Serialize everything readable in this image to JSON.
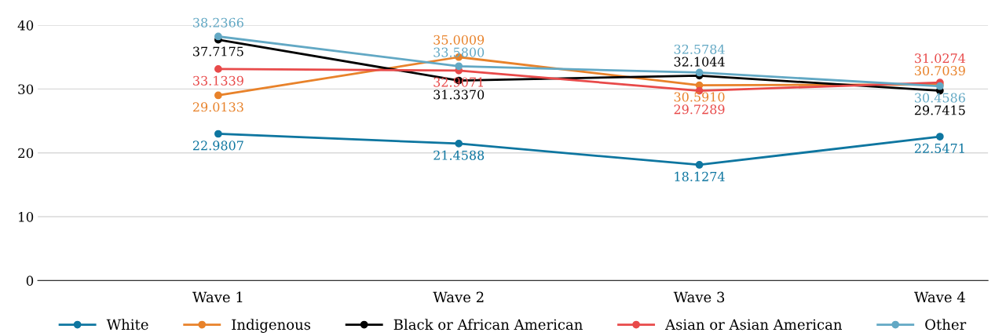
{
  "chart_data": {
    "type": "line",
    "categories": [
      "Wave 1",
      "Wave 2",
      "Wave 3",
      "Wave 4"
    ],
    "series": [
      {
        "name": "White",
        "color": "#0e76a0",
        "values": [
          22.9807,
          21.4588,
          18.1274,
          22.5471
        ],
        "value_labels": [
          "22.9807",
          "21.4588",
          "18.1274",
          "22.5471"
        ]
      },
      {
        "name": "Indigenous",
        "color": "#e8822a",
        "values": [
          29.0133,
          35.0009,
          30.591,
          30.7039
        ],
        "value_labels": [
          "29.0133",
          "35.0009",
          "30.5910",
          "30.7039"
        ]
      },
      {
        "name": "Black or African American",
        "color": "#000000",
        "values": [
          37.7175,
          31.337,
          32.1044,
          29.7415
        ],
        "value_labels": [
          "37.7175",
          "31.3370",
          "32.1044",
          "29.7415"
        ]
      },
      {
        "name": "Asian or Asian American",
        "color": "#e84a4a",
        "values": [
          33.1339,
          32.9071,
          29.7289,
          31.0274
        ],
        "value_labels": [
          "33.1339",
          "32.9071",
          "29.7289",
          "31.0274"
        ]
      },
      {
        "name": "Other",
        "color": "#62a8c4",
        "values": [
          38.2366,
          33.58,
          32.5784,
          30.4586
        ],
        "value_labels": [
          "38.2366",
          "33.5800",
          "32.5784",
          "30.4586"
        ]
      }
    ],
    "ylim": [
      0,
      40
    ],
    "yticks": [
      0,
      10,
      20,
      30,
      40
    ],
    "grid": "y",
    "legend": "bottom",
    "marker": "circle",
    "line_style": "solid"
  }
}
